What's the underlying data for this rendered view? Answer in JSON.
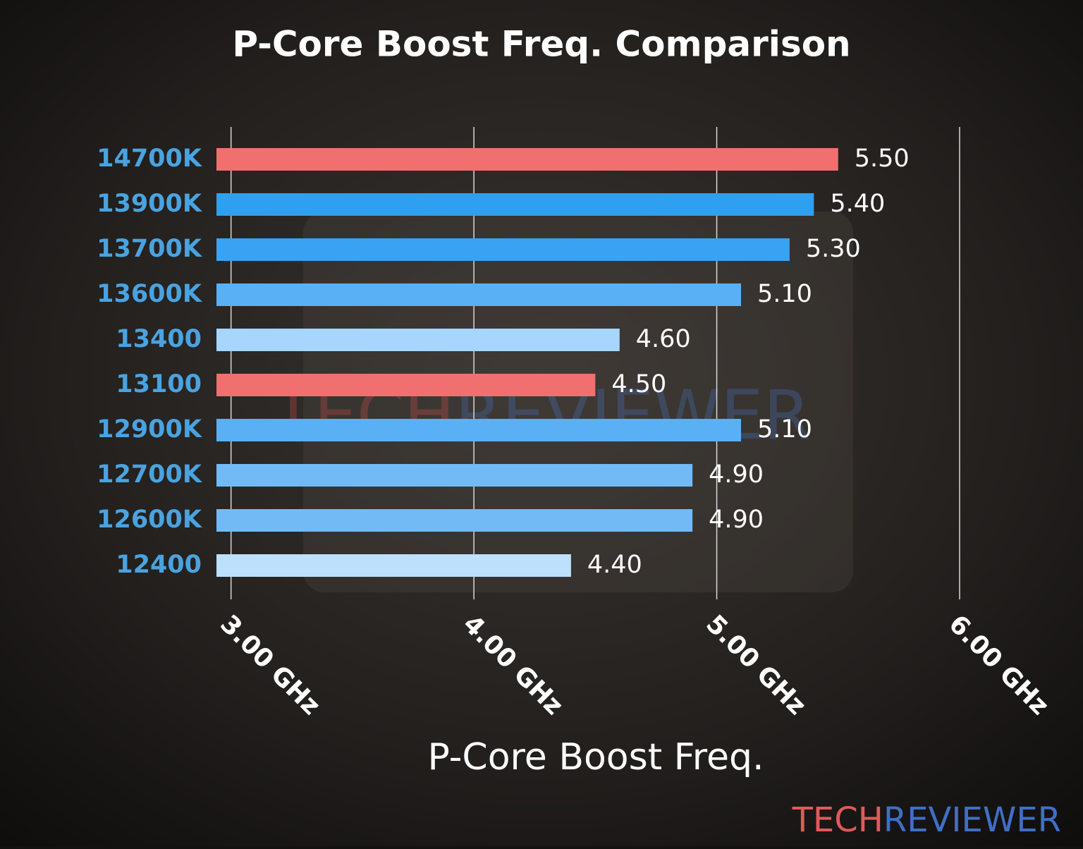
{
  "chart_data": {
    "type": "barh",
    "title": "P-Core Boost Freq. Comparison",
    "categories": [
      "14700K",
      "13900K",
      "13700K",
      "13600K",
      "13400",
      "13100",
      "12900K",
      "12700K",
      "12600K",
      "12400"
    ],
    "values": [
      5.5,
      5.4,
      5.3,
      5.1,
      4.6,
      4.5,
      5.1,
      4.9,
      4.9,
      4.4
    ],
    "value_labels": [
      "5.50",
      "5.40",
      "5.30",
      "5.10",
      "4.60",
      "4.50",
      "5.10",
      "4.90",
      "4.90",
      "4.40"
    ],
    "colors": [
      "#f07070",
      "#2f9ff0",
      "#3aa2f2",
      "#5ab0f5",
      "#a8d5fb",
      "#f07070",
      "#5ab0f5",
      "#72baf6",
      "#72baf6",
      "#bde0fc"
    ],
    "xlabel": "P-Core Boost Freq.",
    "xlim": [
      2.94,
      6.0
    ],
    "xticks": [
      {
        "value": 3,
        "label": "3.00 GHz"
      },
      {
        "value": 4,
        "label": "4.00 GHz"
      },
      {
        "value": 5,
        "label": "5.00 GHz"
      },
      {
        "value": 6,
        "label": "6.00 GHz"
      }
    ],
    "grid": true
  },
  "brand": {
    "first": "TECH",
    "second": "REVIEWER"
  }
}
